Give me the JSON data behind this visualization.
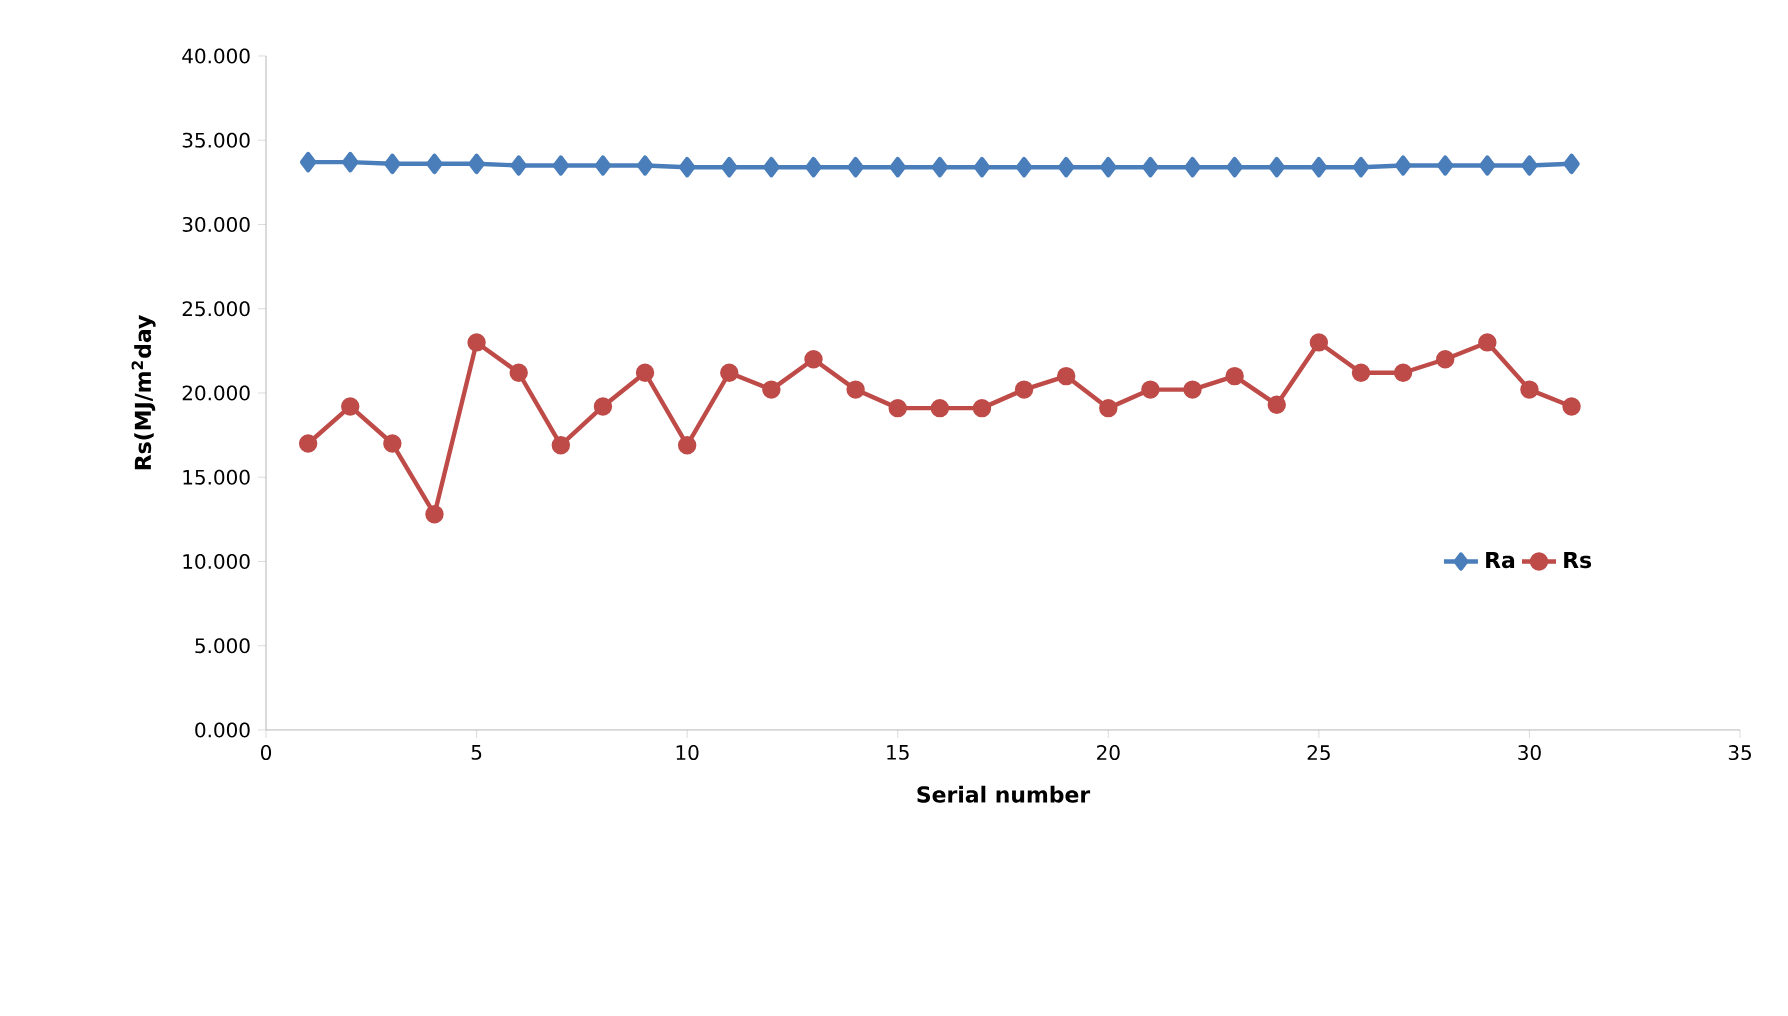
{
  "chart_data": {
    "type": "line",
    "xlabel": "Serial number",
    "ylabel": "Rs(MJ/m$^{2}$day",
    "x": [
      1,
      2,
      3,
      4,
      5,
      6,
      7,
      8,
      9,
      10,
      11,
      12,
      13,
      14,
      15,
      16,
      17,
      18,
      19,
      20,
      21,
      22,
      23,
      24,
      25,
      26,
      27,
      28,
      29,
      30,
      31
    ],
    "series": [
      {
        "name": "Ra",
        "color": "#4a7ebb",
        "marker": "diamond",
        "values": [
          33.7,
          33.7,
          33.6,
          33.6,
          33.6,
          33.5,
          33.5,
          33.5,
          33.5,
          33.4,
          33.4,
          33.4,
          33.4,
          33.4,
          33.4,
          33.4,
          33.4,
          33.4,
          33.4,
          33.4,
          33.4,
          33.4,
          33.4,
          33.4,
          33.4,
          33.4,
          33.5,
          33.5,
          33.5,
          33.5,
          33.6
        ]
      },
      {
        "name": "Rs",
        "color": "#be4b48",
        "marker": "circle",
        "values": [
          17.0,
          19.2,
          17.0,
          12.8,
          23.0,
          21.2,
          16.9,
          19.2,
          21.2,
          16.9,
          21.2,
          20.2,
          22.0,
          20.2,
          19.1,
          19.1,
          19.1,
          20.2,
          21.0,
          19.1,
          20.2,
          20.2,
          21.0,
          19.3,
          23.0,
          21.2,
          21.2,
          22.0,
          23.0,
          20.2,
          19.2
        ]
      }
    ],
    "xlim": [
      0,
      35
    ],
    "xticks": [
      0,
      5,
      10,
      15,
      20,
      25,
      30,
      35
    ],
    "ylim": [
      0,
      40
    ],
    "yticks": [
      {
        "value": 0,
        "label": "0.000"
      },
      {
        "value": 5,
        "label": "5.000"
      },
      {
        "value": 10,
        "label": "10.000"
      },
      {
        "value": 15,
        "label": "15.000"
      },
      {
        "value": 20,
        "label": "20.000"
      },
      {
        "value": 25,
        "label": "25.000"
      },
      {
        "value": 30,
        "label": "30.000"
      },
      {
        "value": 35,
        "label": "35.000"
      },
      {
        "value": 40,
        "label": "40.000"
      }
    ],
    "grid": false,
    "legend": "right",
    "line_style": "solid"
  }
}
